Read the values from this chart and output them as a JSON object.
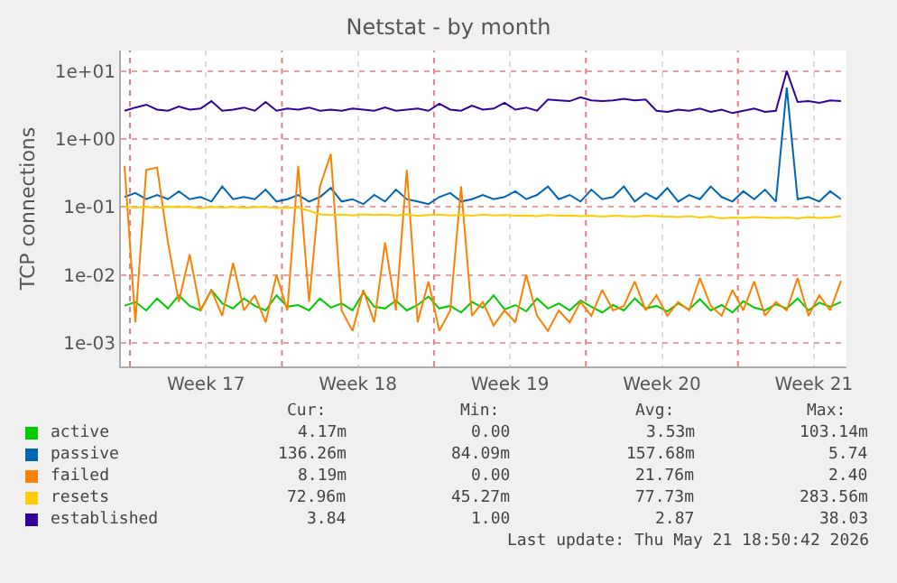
{
  "chart_data": {
    "type": "line",
    "title": "Netstat - by month",
    "ylabel": "TCP connections",
    "log": "y",
    "grid": true,
    "legend": "bottom",
    "line_style": "solid",
    "marker": "none",
    "xlim": [
      "2026-04-19T14:00",
      "2026-05-23T00:00"
    ],
    "xticks": [
      {
        "value": "2026-04-23T12:00",
        "label": "Week 17"
      },
      {
        "value": "2026-04-30T12:00",
        "label": "Week 18"
      },
      {
        "value": "2026-05-07T12:00",
        "label": "Week 19"
      },
      {
        "value": "2026-05-14T12:00",
        "label": "Week 20"
      },
      {
        "value": "2026-05-21T12:00",
        "label": "Week 21"
      }
    ],
    "ylim": [
      0.00045,
      20
    ],
    "yticks": [
      {
        "value": 0.001,
        "label": "1e-03"
      },
      {
        "value": 0.01,
        "label": "1e-02"
      },
      {
        "value": 0.1,
        "label": "1e-01"
      },
      {
        "value": 1,
        "label": "1e+00"
      },
      {
        "value": 10,
        "label": "1e+01"
      }
    ],
    "ref_lines": [
      {
        "axis": "x",
        "value": "2026-04-20",
        "color": "#e08080",
        "line_style": "dotted"
      },
      {
        "axis": "x",
        "value": "2026-04-27",
        "color": "#e08080",
        "line_style": "dotted"
      },
      {
        "axis": "x",
        "value": "2026-05-04",
        "color": "#e08080",
        "line_style": "dotted"
      },
      {
        "axis": "x",
        "value": "2026-05-11",
        "color": "#e08080",
        "line_style": "dotted"
      },
      {
        "axis": "x",
        "value": "2026-05-18",
        "color": "#e08080",
        "line_style": "dotted"
      }
    ],
    "x": [
      "2026-04-19T18:00",
      "2026-04-20T06:00",
      "2026-04-20T18:00",
      "2026-04-21T06:00",
      "2026-04-21T18:00",
      "2026-04-22T06:00",
      "2026-04-22T18:00",
      "2026-04-23T06:00",
      "2026-04-23T18:00",
      "2026-04-24T06:00",
      "2026-04-24T18:00",
      "2026-04-25T06:00",
      "2026-04-25T18:00",
      "2026-04-26T06:00",
      "2026-04-26T18:00",
      "2026-04-27T06:00",
      "2026-04-27T18:00",
      "2026-04-28T06:00",
      "2026-04-28T18:00",
      "2026-04-29T06:00",
      "2026-04-29T18:00",
      "2026-04-30T06:00",
      "2026-04-30T18:00",
      "2026-05-01T06:00",
      "2026-05-01T18:00",
      "2026-05-02T06:00",
      "2026-05-02T18:00",
      "2026-05-03T06:00",
      "2026-05-03T18:00",
      "2026-05-04T06:00",
      "2026-05-04T18:00",
      "2026-05-05T06:00",
      "2026-05-05T18:00",
      "2026-05-06T06:00",
      "2026-05-06T18:00",
      "2026-05-07T06:00",
      "2026-05-07T18:00",
      "2026-05-08T06:00",
      "2026-05-08T18:00",
      "2026-05-09T06:00",
      "2026-05-09T18:00",
      "2026-05-10T06:00",
      "2026-05-10T18:00",
      "2026-05-11T06:00",
      "2026-05-11T18:00",
      "2026-05-12T06:00",
      "2026-05-12T18:00",
      "2026-05-13T06:00",
      "2026-05-13T18:00",
      "2026-05-14T06:00",
      "2026-05-14T18:00",
      "2026-05-15T06:00",
      "2026-05-15T18:00",
      "2026-05-16T06:00",
      "2026-05-16T18:00",
      "2026-05-17T06:00",
      "2026-05-17T18:00",
      "2026-05-18T06:00",
      "2026-05-18T18:00",
      "2026-05-19T06:00",
      "2026-05-19T18:00",
      "2026-05-20T06:00",
      "2026-05-20T18:00",
      "2026-05-21T06:00",
      "2026-05-21T18:00",
      "2026-05-22T06:00",
      "2026-05-22T18:00"
    ],
    "series": [
      {
        "name": "active",
        "color": "#00cc00",
        "values": [
          0.0035,
          0.004,
          0.003,
          0.0045,
          0.0032,
          0.005,
          0.0035,
          0.003,
          0.006,
          0.0038,
          0.0032,
          0.0045,
          0.0035,
          0.003,
          0.005,
          0.0034,
          0.0036,
          0.003,
          0.0045,
          0.0033,
          0.0038,
          0.003,
          0.0055,
          0.0034,
          0.0032,
          0.0042,
          0.003,
          0.0036,
          0.0048,
          0.0032,
          0.0035,
          0.0028,
          0.004,
          0.0033,
          0.005,
          0.0031,
          0.0036,
          0.0029,
          0.0045,
          0.0032,
          0.0038,
          0.003,
          0.0042,
          0.0034,
          0.0028,
          0.0036,
          0.003,
          0.0045,
          0.0032,
          0.0035,
          0.0029,
          0.0038,
          0.0031,
          0.0044,
          0.003,
          0.0036,
          0.0028,
          0.0041,
          0.0033,
          0.003,
          0.0037,
          0.0032,
          0.0045,
          0.003,
          0.0039,
          0.0034,
          0.004
        ]
      },
      {
        "name": "passive",
        "color": "#0066b3",
        "values": [
          0.14,
          0.16,
          0.13,
          0.15,
          0.13,
          0.17,
          0.13,
          0.14,
          0.12,
          0.2,
          0.13,
          0.14,
          0.13,
          0.18,
          0.12,
          0.13,
          0.15,
          0.12,
          0.14,
          0.19,
          0.12,
          0.13,
          0.11,
          0.15,
          0.12,
          0.18,
          0.13,
          0.12,
          0.11,
          0.14,
          0.16,
          0.12,
          0.13,
          0.15,
          0.13,
          0.14,
          0.17,
          0.13,
          0.15,
          0.2,
          0.13,
          0.15,
          0.12,
          0.18,
          0.13,
          0.14,
          0.2,
          0.12,
          0.16,
          0.13,
          0.19,
          0.12,
          0.15,
          0.13,
          0.2,
          0.14,
          0.12,
          0.17,
          0.13,
          0.18,
          0.12,
          5.7,
          0.13,
          0.14,
          0.12,
          0.17,
          0.13
        ]
      },
      {
        "name": "failed",
        "color": "#ff8000",
        "values": [
          0.4,
          0.002,
          0.35,
          0.38,
          0.03,
          0.004,
          0.02,
          0.003,
          0.006,
          0.0025,
          0.015,
          0.003,
          0.005,
          0.002,
          0.01,
          0.003,
          0.4,
          0.004,
          0.2,
          0.6,
          0.003,
          0.0015,
          0.006,
          0.002,
          0.03,
          0.003,
          0.35,
          0.002,
          0.008,
          0.0015,
          0.003,
          0.2,
          0.0025,
          0.004,
          0.0018,
          0.003,
          0.002,
          0.01,
          0.0025,
          0.0015,
          0.003,
          0.002,
          0.004,
          0.0025,
          0.006,
          0.003,
          0.0035,
          0.008,
          0.003,
          0.005,
          0.0025,
          0.004,
          0.003,
          0.009,
          0.0035,
          0.0025,
          0.006,
          0.003,
          0.008,
          0.0025,
          0.004,
          0.003,
          0.009,
          0.0025,
          0.005,
          0.003,
          0.0082
        ]
      },
      {
        "name": "resets",
        "color": "#ffcc00",
        "values": [
          0.1,
          0.098,
          0.1,
          0.097,
          0.1,
          0.099,
          0.1,
          0.096,
          0.1,
          0.098,
          0.1,
          0.097,
          0.099,
          0.1,
          0.096,
          0.098,
          0.097,
          0.088,
          0.078,
          0.076,
          0.077,
          0.075,
          0.078,
          0.076,
          0.077,
          0.075,
          0.078,
          0.074,
          0.076,
          0.077,
          0.075,
          0.076,
          0.074,
          0.077,
          0.075,
          0.076,
          0.074,
          0.075,
          0.073,
          0.076,
          0.074,
          0.075,
          0.073,
          0.074,
          0.072,
          0.074,
          0.073,
          0.072,
          0.074,
          0.073,
          0.072,
          0.071,
          0.073,
          0.07,
          0.072,
          0.068,
          0.07,
          0.069,
          0.071,
          0.07,
          0.069,
          0.07,
          0.068,
          0.071,
          0.069,
          0.07,
          0.073
        ]
      },
      {
        "name": "established",
        "color": "#330099",
        "values": [
          2.6,
          2.9,
          3.2,
          2.7,
          2.6,
          3.0,
          2.7,
          2.8,
          3.6,
          2.6,
          2.7,
          2.9,
          2.6,
          3.5,
          2.6,
          2.8,
          2.7,
          2.9,
          2.6,
          2.7,
          2.6,
          2.8,
          2.7,
          2.6,
          2.9,
          2.6,
          2.7,
          2.8,
          2.6,
          3.3,
          2.7,
          2.6,
          3.1,
          2.7,
          2.8,
          3.4,
          2.7,
          2.9,
          2.6,
          3.8,
          3.7,
          3.6,
          4.1,
          3.7,
          3.6,
          3.7,
          3.9,
          3.7,
          3.8,
          2.6,
          2.5,
          2.7,
          2.6,
          2.8,
          2.5,
          2.7,
          2.4,
          2.6,
          2.8,
          2.5,
          2.6,
          10,
          3.5,
          3.6,
          3.4,
          3.7,
          3.6
        ]
      }
    ],
    "annotations": [
      "Cur:",
      "Min:",
      "Avg:",
      "Max:",
      "4.17m",
      "0.00",
      "3.53m",
      "103.14m",
      "136.26m",
      "84.09m",
      "157.68m",
      "5.74",
      "8.19m",
      "0.00",
      "21.76m",
      "2.40",
      "72.96m",
      "45.27m",
      "77.73m",
      "283.56m",
      "3.84",
      "1.00",
      "2.87",
      "38.03",
      "Last update: Thu May 21 18:50:42 2026"
    ]
  }
}
